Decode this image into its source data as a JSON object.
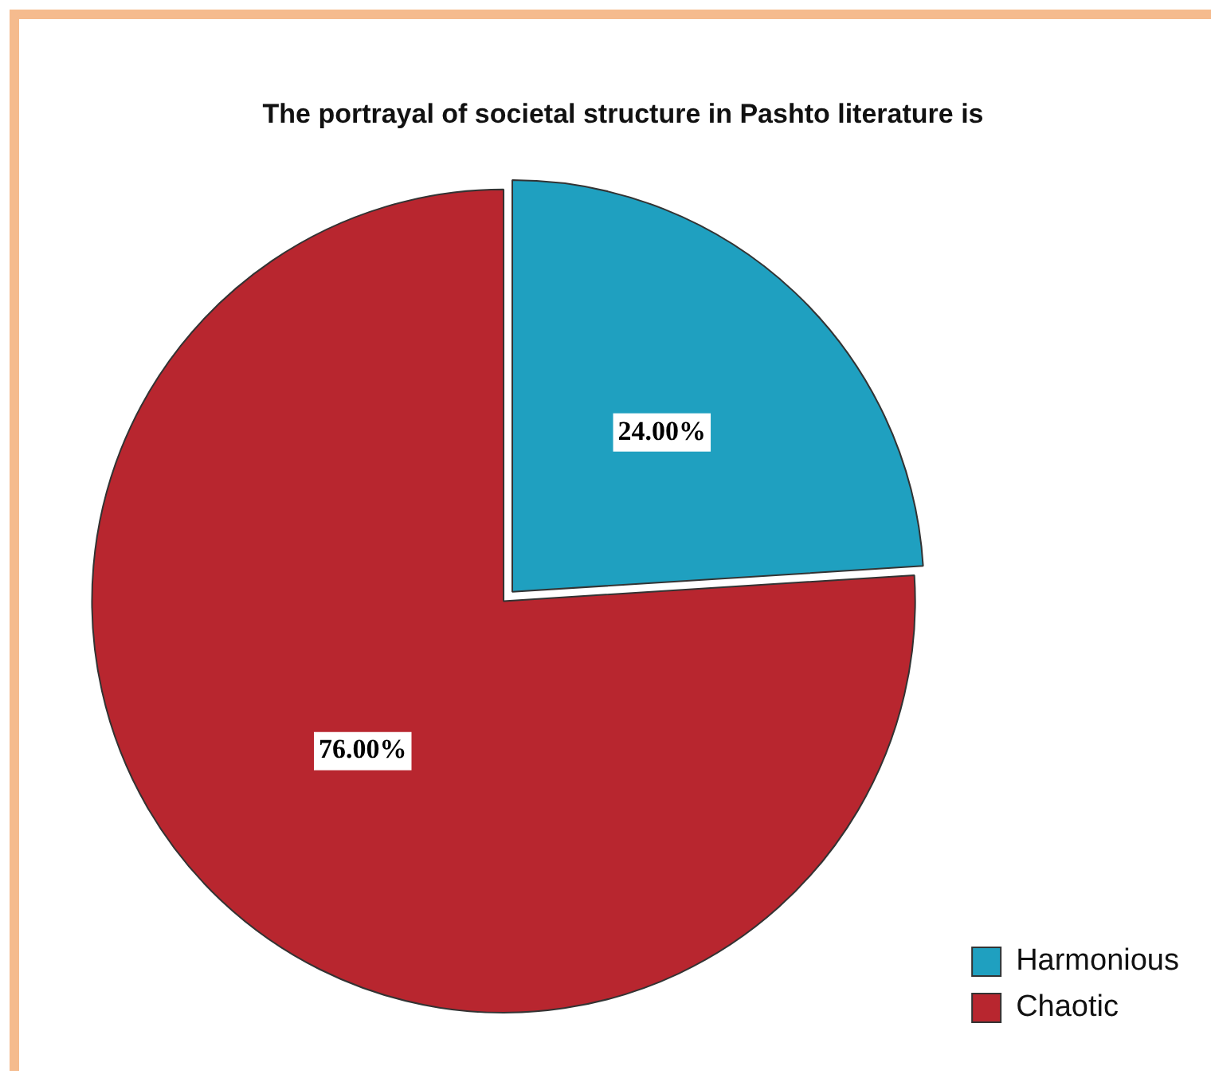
{
  "chart_data": {
    "type": "pie",
    "title": "The portrayal of societal structure in Pashto literature is",
    "categories": [
      "Harmonious",
      "Chaotic"
    ],
    "values": [
      24,
      76
    ],
    "colors": [
      "#1fa0c0",
      "#b8262f"
    ],
    "value_labels": [
      "24.00%",
      "76.00%"
    ],
    "legend": "bottom right"
  }
}
